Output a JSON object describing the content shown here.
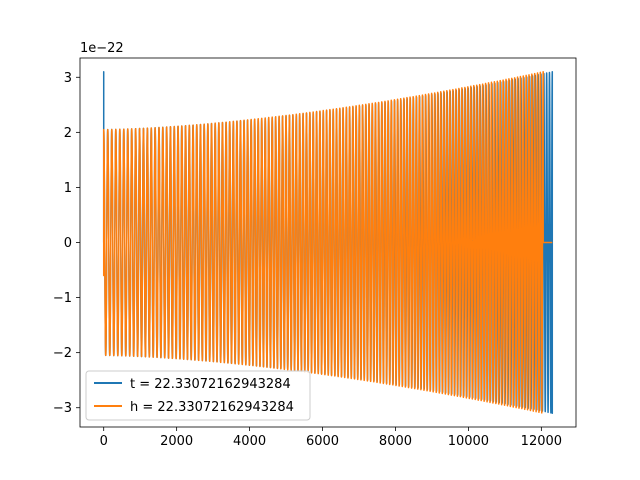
{
  "chart_data": {
    "type": "line",
    "title": "",
    "xlabel": "",
    "ylabel": "",
    "y_offset_label": "1e−22",
    "xlim": [
      -650,
      12950
    ],
    "ylim": [
      -3.35,
      3.35
    ],
    "x_ticks": [
      0,
      2000,
      4000,
      6000,
      8000,
      10000,
      12000
    ],
    "x_tick_labels": [
      "0",
      "2000",
      "4000",
      "6000",
      "8000",
      "10000",
      "12000"
    ],
    "y_ticks": [
      -3,
      -2,
      -1,
      0,
      1,
      2,
      3
    ],
    "y_tick_labels": [
      "−3",
      "−2",
      "−1",
      "0",
      "1",
      "2",
      "3"
    ],
    "grid": false,
    "legend_placement": "lower-left",
    "series": [
      {
        "name": "t = 22.33072162943284",
        "color": "#1f77b4",
        "x_start": 0,
        "x_end": 12300,
        "amplitude_start": 2.05,
        "amplitude_end": 3.1,
        "initial_spike": 3.1,
        "oscillations": 135
      },
      {
        "name": "h = 22.33072162943284",
        "color": "#ff7f0e",
        "x_start": 0,
        "x_end": 12050,
        "amplitude_start": 2.05,
        "amplitude_end": 3.1,
        "initial_spike": -0.6,
        "oscillations": 132,
        "tail_end": 12300
      }
    ]
  }
}
